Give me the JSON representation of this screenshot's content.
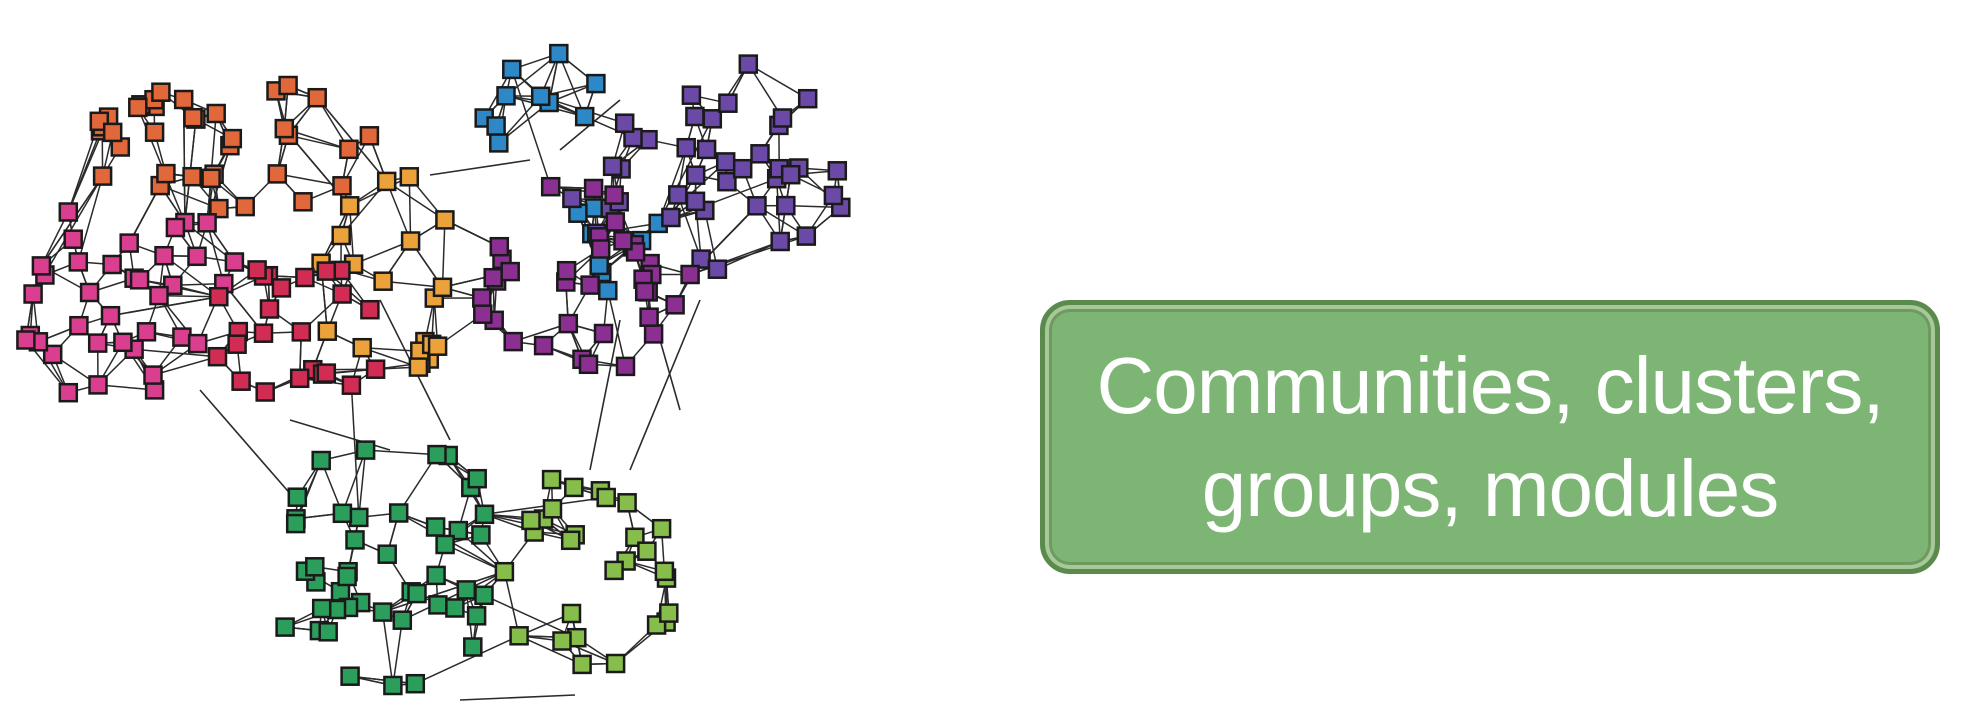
{
  "label": {
    "text": "Communities, clusters, groups, modules",
    "fill_color": "#7db575",
    "border_color": "#5b8a4d"
  },
  "network": {
    "node_shape": "square",
    "edge_color": "#2b2b2b",
    "node_border_color": "#1a1a1a",
    "communities": [
      {
        "name": "pink",
        "color": "#d93f8e"
      },
      {
        "name": "orange",
        "color": "#e1683a"
      },
      {
        "name": "yellow",
        "color": "#eba23a"
      },
      {
        "name": "crimson",
        "color": "#d12c53"
      },
      {
        "name": "blue",
        "color": "#2d88c8"
      },
      {
        "name": "purple",
        "color": "#6a4aa6"
      },
      {
        "name": "magenta",
        "color": "#8b2f93"
      },
      {
        "name": "green",
        "color": "#2c9e5c"
      },
      {
        "name": "light-green",
        "color": "#86bd4b"
      }
    ]
  }
}
